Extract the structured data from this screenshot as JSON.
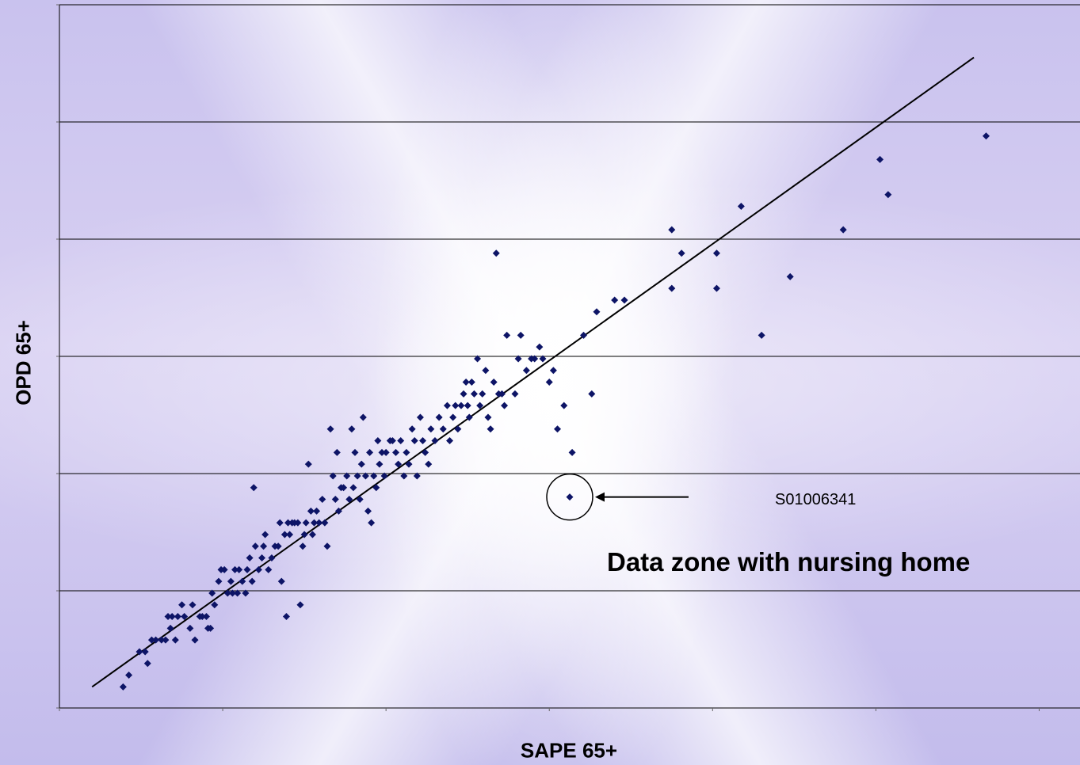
{
  "chart_data": {
    "type": "scatter",
    "title": "",
    "xlabel": "SAPE 65+",
    "ylabel": "OPD 65+",
    "xlim": [
      0,
      12.5
    ],
    "ylim": [
      0,
      6
    ],
    "x_tick_labels_shown": false,
    "y_tick_labels_shown": false,
    "grid": "horizontal",
    "marker_color": "#0d1466",
    "line_color": "#000000",
    "trendline": {
      "x": [
        0.4,
        11.2
      ],
      "y": [
        0.18,
        5.55
      ]
    },
    "annotation": {
      "label": "S01006341",
      "callout": "Data zone with nursing home",
      "point": {
        "x": 6.25,
        "y": 1.8
      }
    },
    "series": [
      {
        "points": [
          [
            0.78,
            0.18
          ],
          [
            0.85,
            0.28
          ],
          [
            0.98,
            0.48
          ],
          [
            1.05,
            0.48
          ],
          [
            1.08,
            0.38
          ],
          [
            1.13,
            0.58
          ],
          [
            1.18,
            0.58
          ],
          [
            1.25,
            0.58
          ],
          [
            1.3,
            0.58
          ],
          [
            1.33,
            0.78
          ],
          [
            1.36,
            0.68
          ],
          [
            1.38,
            0.78
          ],
          [
            1.42,
            0.58
          ],
          [
            1.45,
            0.78
          ],
          [
            1.5,
            0.88
          ],
          [
            1.53,
            0.78
          ],
          [
            1.6,
            0.68
          ],
          [
            1.63,
            0.88
          ],
          [
            1.66,
            0.58
          ],
          [
            1.72,
            0.78
          ],
          [
            1.75,
            0.78
          ],
          [
            1.8,
            0.78
          ],
          [
            1.82,
            0.68
          ],
          [
            1.85,
            0.68
          ],
          [
            1.87,
            0.98
          ],
          [
            1.9,
            0.88
          ],
          [
            1.95,
            1.08
          ],
          [
            1.98,
            1.18
          ],
          [
            2.02,
            1.18
          ],
          [
            2.06,
            0.98
          ],
          [
            2.1,
            1.08
          ],
          [
            2.12,
            0.98
          ],
          [
            2.15,
            1.18
          ],
          [
            2.18,
            0.98
          ],
          [
            2.2,
            1.18
          ],
          [
            2.24,
            1.08
          ],
          [
            2.28,
            0.98
          ],
          [
            2.3,
            1.18
          ],
          [
            2.33,
            1.28
          ],
          [
            2.36,
            1.08
          ],
          [
            2.38,
            1.88
          ],
          [
            2.4,
            1.38
          ],
          [
            2.44,
            1.18
          ],
          [
            2.48,
            1.28
          ],
          [
            2.5,
            1.38
          ],
          [
            2.52,
            1.48
          ],
          [
            2.56,
            1.18
          ],
          [
            2.6,
            1.28
          ],
          [
            2.64,
            1.38
          ],
          [
            2.68,
            1.38
          ],
          [
            2.7,
            1.58
          ],
          [
            2.72,
            1.08
          ],
          [
            2.76,
            1.48
          ],
          [
            2.78,
            0.78
          ],
          [
            2.8,
            1.58
          ],
          [
            2.82,
            1.48
          ],
          [
            2.85,
            1.58
          ],
          [
            2.88,
            1.58
          ],
          [
            2.92,
            1.58
          ],
          [
            2.95,
            0.88
          ],
          [
            2.98,
            1.38
          ],
          [
            3.0,
            1.48
          ],
          [
            3.02,
            1.58
          ],
          [
            3.05,
            2.08
          ],
          [
            3.08,
            1.68
          ],
          [
            3.1,
            1.48
          ],
          [
            3.12,
            1.58
          ],
          [
            3.15,
            1.68
          ],
          [
            3.18,
            1.58
          ],
          [
            3.22,
            1.78
          ],
          [
            3.25,
            1.58
          ],
          [
            3.28,
            1.38
          ],
          [
            3.32,
            2.38
          ],
          [
            3.35,
            1.98
          ],
          [
            3.38,
            1.78
          ],
          [
            3.4,
            2.18
          ],
          [
            3.42,
            1.68
          ],
          [
            3.45,
            1.88
          ],
          [
            3.48,
            1.88
          ],
          [
            3.52,
            1.98
          ],
          [
            3.55,
            1.78
          ],
          [
            3.58,
            2.38
          ],
          [
            3.6,
            1.88
          ],
          [
            3.62,
            2.18
          ],
          [
            3.65,
            1.98
          ],
          [
            3.68,
            1.78
          ],
          [
            3.7,
            2.08
          ],
          [
            3.72,
            2.48
          ],
          [
            3.75,
            1.98
          ],
          [
            3.78,
            1.68
          ],
          [
            3.8,
            2.18
          ],
          [
            3.82,
            1.58
          ],
          [
            3.85,
            1.98
          ],
          [
            3.88,
            1.88
          ],
          [
            3.9,
            2.28
          ],
          [
            3.92,
            2.08
          ],
          [
            3.95,
            2.18
          ],
          [
            3.98,
            1.98
          ],
          [
            4.0,
            2.18
          ],
          [
            4.05,
            2.28
          ],
          [
            4.08,
            2.28
          ],
          [
            4.12,
            2.18
          ],
          [
            4.15,
            2.08
          ],
          [
            4.18,
            2.28
          ],
          [
            4.22,
            1.98
          ],
          [
            4.25,
            2.18
          ],
          [
            4.28,
            2.08
          ],
          [
            4.32,
            2.38
          ],
          [
            4.35,
            2.28
          ],
          [
            4.38,
            1.98
          ],
          [
            4.42,
            2.48
          ],
          [
            4.45,
            2.28
          ],
          [
            4.48,
            2.18
          ],
          [
            4.52,
            2.08
          ],
          [
            4.55,
            2.38
          ],
          [
            4.6,
            2.28
          ],
          [
            4.65,
            2.48
          ],
          [
            4.7,
            2.38
          ],
          [
            4.75,
            2.58
          ],
          [
            4.78,
            2.28
          ],
          [
            4.82,
            2.48
          ],
          [
            4.85,
            2.58
          ],
          [
            4.88,
            2.38
          ],
          [
            4.92,
            2.58
          ],
          [
            4.95,
            2.68
          ],
          [
            4.98,
            2.78
          ],
          [
            5.0,
            2.58
          ],
          [
            5.02,
            2.48
          ],
          [
            5.05,
            2.78
          ],
          [
            5.08,
            2.68
          ],
          [
            5.12,
            2.98
          ],
          [
            5.15,
            2.58
          ],
          [
            5.18,
            2.68
          ],
          [
            5.22,
            2.88
          ],
          [
            5.25,
            2.48
          ],
          [
            5.28,
            2.38
          ],
          [
            5.32,
            2.78
          ],
          [
            5.35,
            3.88
          ],
          [
            5.38,
            2.68
          ],
          [
            5.42,
            2.68
          ],
          [
            5.45,
            2.58
          ],
          [
            5.48,
            3.18
          ],
          [
            5.58,
            2.68
          ],
          [
            5.62,
            2.98
          ],
          [
            5.65,
            3.18
          ],
          [
            5.72,
            2.88
          ],
          [
            5.78,
            2.98
          ],
          [
            5.82,
            2.98
          ],
          [
            5.88,
            3.08
          ],
          [
            5.92,
            2.98
          ],
          [
            6.0,
            2.78
          ],
          [
            6.05,
            2.88
          ],
          [
            6.1,
            2.38
          ],
          [
            6.18,
            2.58
          ],
          [
            6.28,
            2.18
          ],
          [
            6.42,
            3.18
          ],
          [
            6.52,
            2.68
          ],
          [
            6.58,
            3.38
          ],
          [
            6.8,
            3.48
          ],
          [
            6.92,
            3.48
          ],
          [
            7.5,
            3.58
          ],
          [
            7.62,
            3.88
          ],
          [
            7.5,
            4.08
          ],
          [
            8.05,
            3.58
          ],
          [
            8.05,
            3.88
          ],
          [
            8.35,
            4.28
          ],
          [
            8.6,
            3.18
          ],
          [
            8.95,
            3.68
          ],
          [
            9.6,
            4.08
          ],
          [
            10.05,
            4.68
          ],
          [
            10.15,
            4.38
          ],
          [
            11.35,
            4.88
          ],
          [
            6.25,
            1.8
          ]
        ]
      }
    ]
  }
}
